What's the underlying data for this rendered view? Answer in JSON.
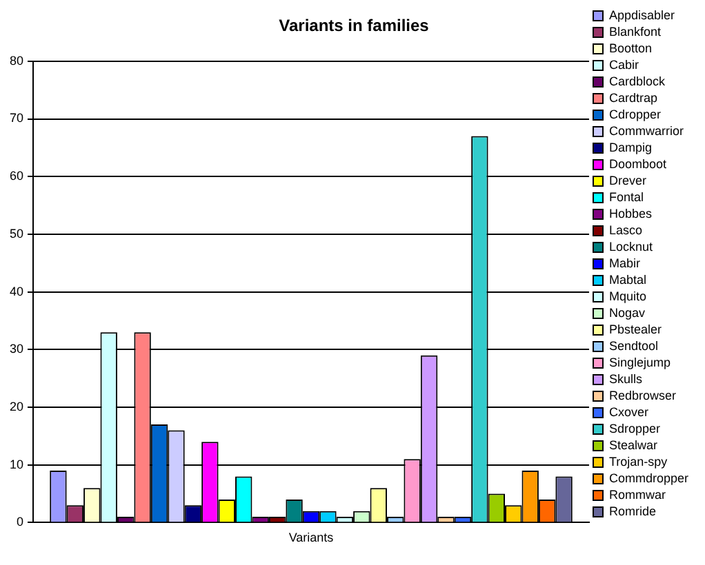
{
  "chart_data": {
    "type": "bar",
    "title": "Variants in families",
    "categories": [
      "Variants"
    ],
    "ylim": [
      0,
      80
    ],
    "yticks": [
      0,
      10,
      20,
      30,
      40,
      50,
      60,
      70,
      80
    ],
    "grid": "y",
    "legend": "right",
    "series": [
      {
        "name": "Appdisabler",
        "color": "#9999ff",
        "values": [
          9
        ]
      },
      {
        "name": "Blankfont",
        "color": "#993366",
        "values": [
          3
        ]
      },
      {
        "name": "Bootton",
        "color": "#ffffcc",
        "values": [
          6
        ]
      },
      {
        "name": "Cabir",
        "color": "#ccffff",
        "values": [
          33
        ]
      },
      {
        "name": "Cardblock",
        "color": "#660066",
        "values": [
          1
        ]
      },
      {
        "name": "Cardtrap",
        "color": "#ff8080",
        "values": [
          33
        ]
      },
      {
        "name": "Cdropper",
        "color": "#0066cc",
        "values": [
          17
        ]
      },
      {
        "name": "Commwarrior",
        "color": "#ccccff",
        "values": [
          16
        ]
      },
      {
        "name": "Dampig",
        "color": "#000080",
        "values": [
          3
        ]
      },
      {
        "name": "Doomboot",
        "color": "#ff00ff",
        "values": [
          14
        ]
      },
      {
        "name": "Drever",
        "color": "#ffff00",
        "values": [
          4
        ]
      },
      {
        "name": "Fontal",
        "color": "#00ffff",
        "values": [
          8
        ]
      },
      {
        "name": "Hobbes",
        "color": "#800080",
        "values": [
          1
        ]
      },
      {
        "name": "Lasco",
        "color": "#800000",
        "values": [
          1
        ]
      },
      {
        "name": "Locknut",
        "color": "#008080",
        "values": [
          4
        ]
      },
      {
        "name": "Mabir",
        "color": "#0000ff",
        "values": [
          2
        ]
      },
      {
        "name": "Mabtal",
        "color": "#00ccff",
        "values": [
          2
        ]
      },
      {
        "name": "Mquito",
        "color": "#ccffff",
        "values": [
          1
        ]
      },
      {
        "name": "Nogav",
        "color": "#ccffcc",
        "values": [
          2
        ]
      },
      {
        "name": "Pbstealer",
        "color": "#ffff99",
        "values": [
          6
        ]
      },
      {
        "name": "Sendtool",
        "color": "#99ccff",
        "values": [
          1
        ]
      },
      {
        "name": "Singlejump",
        "color": "#ff99cc",
        "values": [
          11
        ]
      },
      {
        "name": "Skulls",
        "color": "#cc99ff",
        "values": [
          29
        ]
      },
      {
        "name": "Redbrowser",
        "color": "#ffcc99",
        "values": [
          1
        ]
      },
      {
        "name": "Cxover",
        "color": "#3366ff",
        "values": [
          1
        ]
      },
      {
        "name": "Sdropper",
        "color": "#33cccc",
        "values": [
          67
        ]
      },
      {
        "name": "Stealwar",
        "color": "#99cc00",
        "values": [
          5
        ]
      },
      {
        "name": "Trojan-spy",
        "color": "#ffcc00",
        "values": [
          3
        ]
      },
      {
        "name": "Commdropper",
        "color": "#ff9900",
        "values": [
          9
        ]
      },
      {
        "name": "Rommwar",
        "color": "#ff6600",
        "values": [
          4
        ]
      },
      {
        "name": "Romride",
        "color": "#666699",
        "values": [
          8
        ]
      }
    ]
  }
}
